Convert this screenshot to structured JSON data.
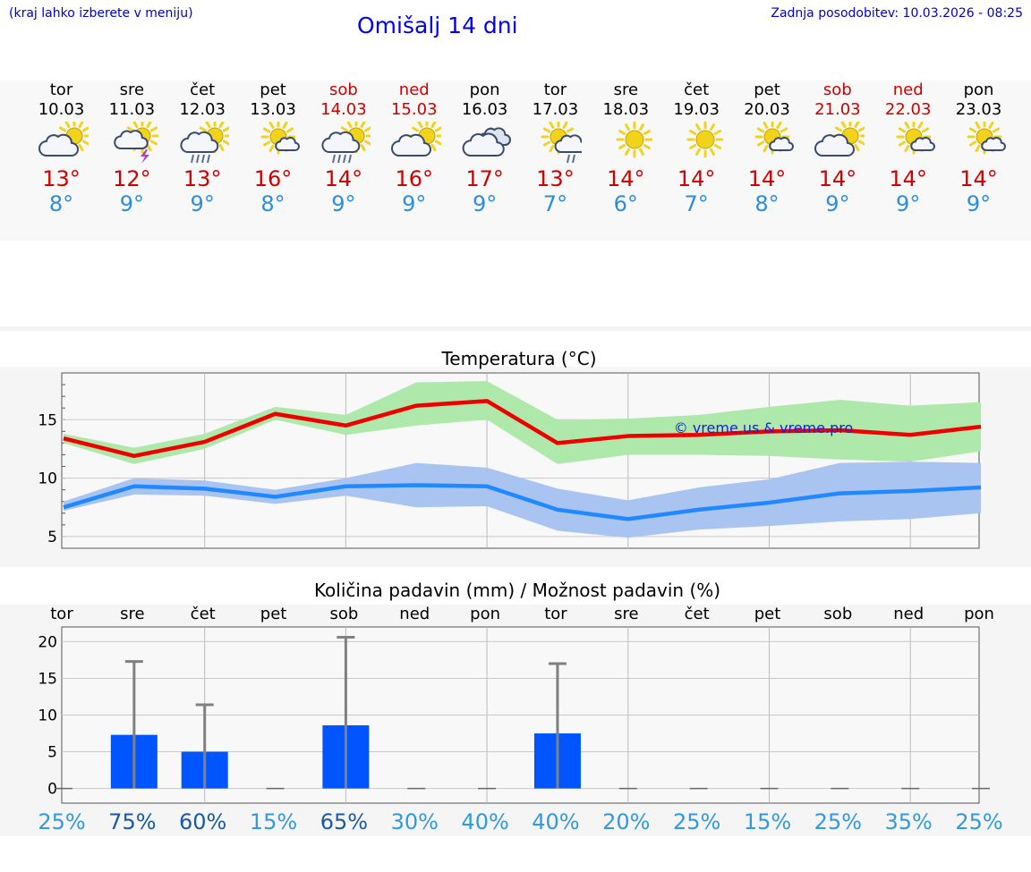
{
  "header": {
    "note": "(kraj lahko izberete v meniju)",
    "title": "Omišalj 14 dni",
    "updated": "Zadnja posodobitev: 10.03.2026 - 08:25"
  },
  "colors": {
    "link": "#0000cc",
    "weekend": "#d00000",
    "tmax": "#d00000",
    "tmin": "#2a8de0",
    "max_line": "#ee0000",
    "max_band": "#aee8aa",
    "min_line": "#2288ff",
    "min_band": "#aac4f2",
    "bar": "#0055ff",
    "errbar": "#808080"
  },
  "days": [
    {
      "name": "tor",
      "date": "10.03",
      "weekend": false,
      "icon": "sun-cloud-icon",
      "tmax": "13°",
      "tmin": "8°"
    },
    {
      "name": "sre",
      "date": "11.03",
      "weekend": false,
      "icon": "sun-thunder-icon",
      "tmax": "12°",
      "tmin": "9°"
    },
    {
      "name": "čet",
      "date": "12.03",
      "weekend": false,
      "icon": "sun-rain-icon",
      "tmax": "13°",
      "tmin": "9°"
    },
    {
      "name": "pet",
      "date": "13.03",
      "weekend": false,
      "icon": "sun-small-cloud-icon",
      "tmax": "16°",
      "tmin": "8°"
    },
    {
      "name": "sob",
      "date": "14.03",
      "weekend": true,
      "icon": "sun-rain-icon",
      "tmax": "14°",
      "tmin": "9°"
    },
    {
      "name": "ned",
      "date": "15.03",
      "weekend": true,
      "icon": "sun-cloud-icon",
      "tmax": "16°",
      "tmin": "9°"
    },
    {
      "name": "pon",
      "date": "16.03",
      "weekend": false,
      "icon": "cloudy-icon",
      "tmax": "17°",
      "tmin": "9°"
    },
    {
      "name": "tor",
      "date": "17.03",
      "weekend": false,
      "icon": "sun-cloud-drizzle-icon",
      "tmax": "13°",
      "tmin": "7°"
    },
    {
      "name": "sre",
      "date": "18.03",
      "weekend": false,
      "icon": "sun-icon",
      "tmax": "14°",
      "tmin": "6°"
    },
    {
      "name": "čet",
      "date": "19.03",
      "weekend": false,
      "icon": "sun-icon",
      "tmax": "14°",
      "tmin": "7°"
    },
    {
      "name": "pet",
      "date": "20.03",
      "weekend": false,
      "icon": "sun-small-cloud-icon",
      "tmax": "14°",
      "tmin": "8°"
    },
    {
      "name": "sob",
      "date": "21.03",
      "weekend": true,
      "icon": "sun-cloud-icon",
      "tmax": "14°",
      "tmin": "9°"
    },
    {
      "name": "ned",
      "date": "22.03",
      "weekend": true,
      "icon": "sun-small-cloud-icon",
      "tmax": "14°",
      "tmin": "9°"
    },
    {
      "name": "pon",
      "date": "23.03",
      "weekend": false,
      "icon": "sun-small-cloud-icon",
      "tmax": "14°",
      "tmin": "9°"
    }
  ],
  "chart_data": [
    {
      "type": "line",
      "title": "Temperatura (°C)",
      "watermark": "© vreme.us & vreme.pro",
      "ylim": [
        4,
        19
      ],
      "yticks": [
        5,
        10,
        15
      ],
      "x": [
        0,
        1,
        2,
        3,
        4,
        5,
        6,
        7,
        8,
        9,
        10,
        11,
        12,
        13
      ],
      "series": [
        {
          "name": "max",
          "values": [
            13.4,
            11.9,
            13.1,
            15.5,
            14.5,
            16.2,
            16.6,
            13.0,
            13.6,
            13.7,
            14.0,
            14.1,
            13.7,
            14.4
          ],
          "low": [
            13.0,
            11.2,
            12.5,
            15.0,
            13.7,
            14.5,
            15.0,
            11.2,
            12.0,
            12.0,
            11.9,
            11.6,
            11.4,
            12.3
          ],
          "high": [
            13.8,
            12.6,
            13.8,
            16.1,
            15.4,
            18.2,
            18.3,
            15.0,
            15.1,
            15.4,
            16.1,
            16.7,
            16.2,
            16.5
          ]
        },
        {
          "name": "min",
          "values": [
            7.5,
            9.3,
            9.1,
            8.4,
            9.3,
            9.4,
            9.3,
            7.3,
            6.5,
            7.3,
            7.9,
            8.7,
            8.9,
            9.2
          ],
          "low": [
            7.2,
            8.6,
            8.5,
            7.8,
            8.5,
            7.5,
            7.6,
            5.5,
            4.9,
            5.6,
            5.9,
            6.3,
            6.5,
            7.0
          ],
          "high": [
            8.0,
            10.0,
            9.8,
            9.0,
            10.0,
            11.3,
            10.9,
            9.1,
            8.1,
            9.2,
            9.9,
            11.3,
            11.4,
            11.3
          ]
        }
      ]
    },
    {
      "type": "bar",
      "title": "Količina padavin (mm) / Možnost padavin (%)",
      "categories": [
        "tor",
        "sre",
        "čet",
        "pet",
        "sob",
        "ned",
        "pon",
        "tor",
        "sre",
        "čet",
        "pet",
        "sob",
        "ned",
        "pon"
      ],
      "values": [
        0,
        7.3,
        5.0,
        0,
        8.6,
        0,
        0,
        7.5,
        0,
        0,
        0,
        0,
        0,
        0
      ],
      "error_high": [
        0,
        17.3,
        11.4,
        0,
        20.6,
        0,
        0,
        17.0,
        0,
        0,
        0,
        0,
        0,
        0
      ],
      "chance": [
        "25%",
        "75%",
        "60%",
        "15%",
        "65%",
        "30%",
        "40%",
        "40%",
        "20%",
        "25%",
        "15%",
        "25%",
        "35%",
        "25%"
      ],
      "ylim": [
        -2,
        22
      ],
      "yticks": [
        0,
        5,
        10,
        15,
        20
      ]
    }
  ]
}
